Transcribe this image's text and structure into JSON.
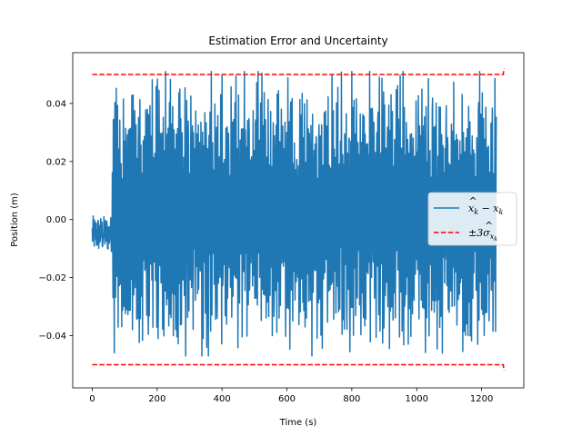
{
  "chart_data": {
    "type": "line",
    "title": "Estimation Error and Uncertainty",
    "xlabel": "Time (s)",
    "ylabel": "Position (m)",
    "xlim": [
      -60,
      1330
    ],
    "ylim": [
      -0.058,
      0.0575
    ],
    "x_ticks": [
      0,
      200,
      400,
      600,
      800,
      1000,
      1200
    ],
    "x_tick_labels": [
      "0",
      "200",
      "400",
      "600",
      "800",
      "1000",
      "1200"
    ],
    "y_ticks": [
      -0.04,
      -0.02,
      0.0,
      0.02,
      0.04
    ],
    "y_tick_labels": [
      "−0.04",
      "−0.02",
      "0.00",
      "0.02",
      "0.04"
    ],
    "grid": false,
    "legend_position": "center-right",
    "series": [
      {
        "name": "x̂_k − x_k",
        "color": "#1f77b4",
        "style": "solid",
        "t_range": [
          0,
          1245
        ],
        "dt": 1,
        "initial_envelope": [
          -0.012,
          0.002
        ],
        "initial_until": 62,
        "envelope": [
          -0.047,
          0.051
        ]
      },
      {
        "name": "±3σ̂_x_k",
        "color": "#ff0000",
        "style": "dashed",
        "x": [
          0,
          1267,
          1267,
          1270
        ],
        "upper": [
          0.05,
          0.05,
          0.0505,
          0.052
        ],
        "lower": [
          -0.05,
          -0.05,
          -0.0505,
          -0.052
        ]
      }
    ]
  }
}
